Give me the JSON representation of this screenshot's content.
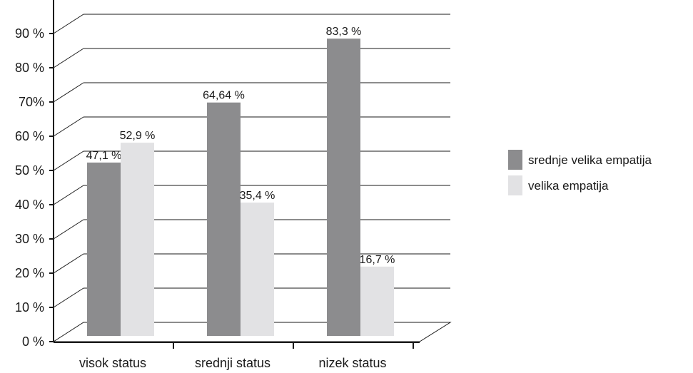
{
  "chart_data": {
    "type": "bar",
    "categories": [
      "visok status",
      "srednji status",
      "nizek status"
    ],
    "series": [
      {
        "name": "srednje velika empatija",
        "values": [
          47.1,
          64.64,
          83.3
        ],
        "labels": [
          "47,1 %",
          "64,64 %",
          "83,3 %"
        ],
        "color": "#8c8c8e"
      },
      {
        "name": "velika empatija",
        "values": [
          52.9,
          35.4,
          16.7
        ],
        "labels": [
          "52,9 %",
          "35,4 %",
          "16,7 %"
        ],
        "color": "#e2e2e4"
      }
    ],
    "y_ticks": [
      "0 %",
      "10 %",
      "20 %",
      "30 %",
      "40 %",
      "50 %",
      "60 %",
      "70%",
      "80 %",
      "90 %"
    ],
    "ylim": [
      0,
      90
    ],
    "grid": true,
    "legend_position": "right",
    "style": "3d-perspective"
  }
}
